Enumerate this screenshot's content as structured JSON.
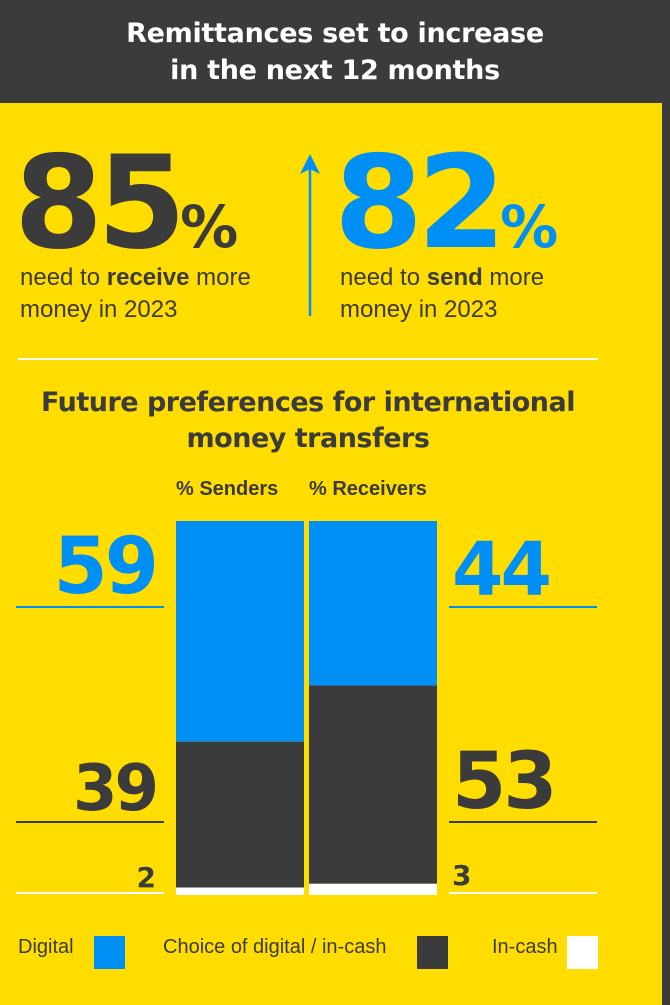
{
  "header": {
    "line1": "Remittances set to increase",
    "line2": "in the next 12 months"
  },
  "stats": {
    "receive": {
      "value": "85",
      "unit": "%",
      "text_pre": "need to ",
      "text_bold": "receive",
      "text_post": " more",
      "line2": "money in 2023"
    },
    "send": {
      "value": "82",
      "unit": "%",
      "text_pre": "need to ",
      "text_bold": "send",
      "text_post": " more",
      "line2": "money in 2023"
    }
  },
  "colors": {
    "background": "#FFDD00",
    "dark": "#3B3B3B",
    "digital": "#0090F5",
    "in_cash": "#FFFFFF"
  },
  "chart_data": {
    "type": "bar",
    "stacked": true,
    "title": "Future preferences for international money transfers",
    "title_line1": "Future preferences for international",
    "title_line2": "money transfers",
    "categories": [
      "% Senders",
      "% Receivers"
    ],
    "series": [
      {
        "name": "Digital",
        "color": "#0090F5",
        "values": [
          59,
          44
        ]
      },
      {
        "name": "Choice of digital / in-cash",
        "color": "#3B3B3B",
        "values": [
          39,
          53
        ]
      },
      {
        "name": "In-cash",
        "color": "#FFFFFF",
        "values": [
          2,
          3
        ]
      }
    ],
    "ylim": [
      0,
      100
    ]
  },
  "legend": {
    "digital": "Digital",
    "choice": "Choice of digital / in-cash",
    "cash": "In-cash"
  }
}
